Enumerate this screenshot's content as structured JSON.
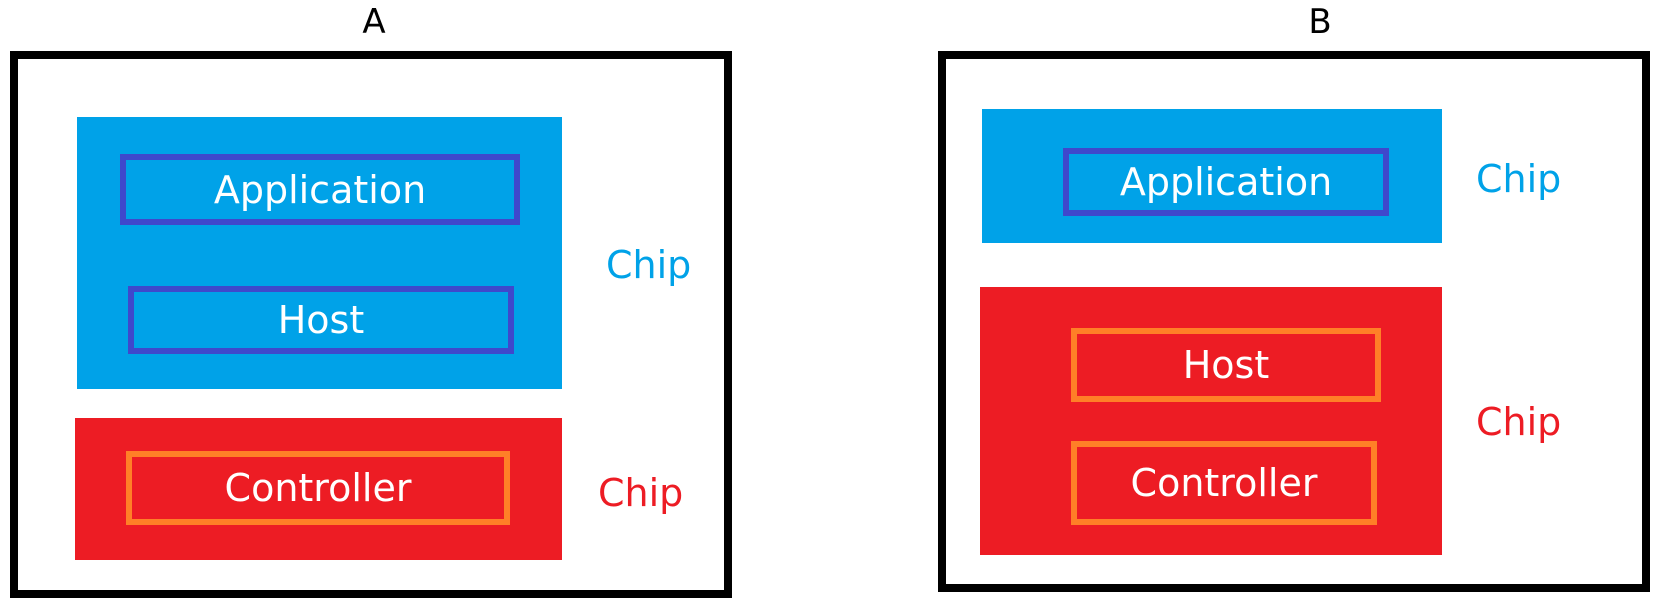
{
  "diagrams": [
    {
      "label": "A",
      "chip_blue_label": "Chip",
      "chip_red_label": "Chip",
      "blue_components": [
        "Application",
        "Host"
      ],
      "red_components": [
        "Controller"
      ]
    },
    {
      "label": "B",
      "chip_blue_label": "Chip",
      "chip_red_label": "Chip",
      "blue_components": [
        "Application"
      ],
      "red_components": [
        "Host",
        "Controller"
      ]
    }
  ],
  "colors": {
    "blue_chip": "#00a2e8",
    "red_chip": "#ed1c24",
    "blue_border": "#3f48cc",
    "orange_border": "#ff7f27",
    "frame": "#000000"
  }
}
